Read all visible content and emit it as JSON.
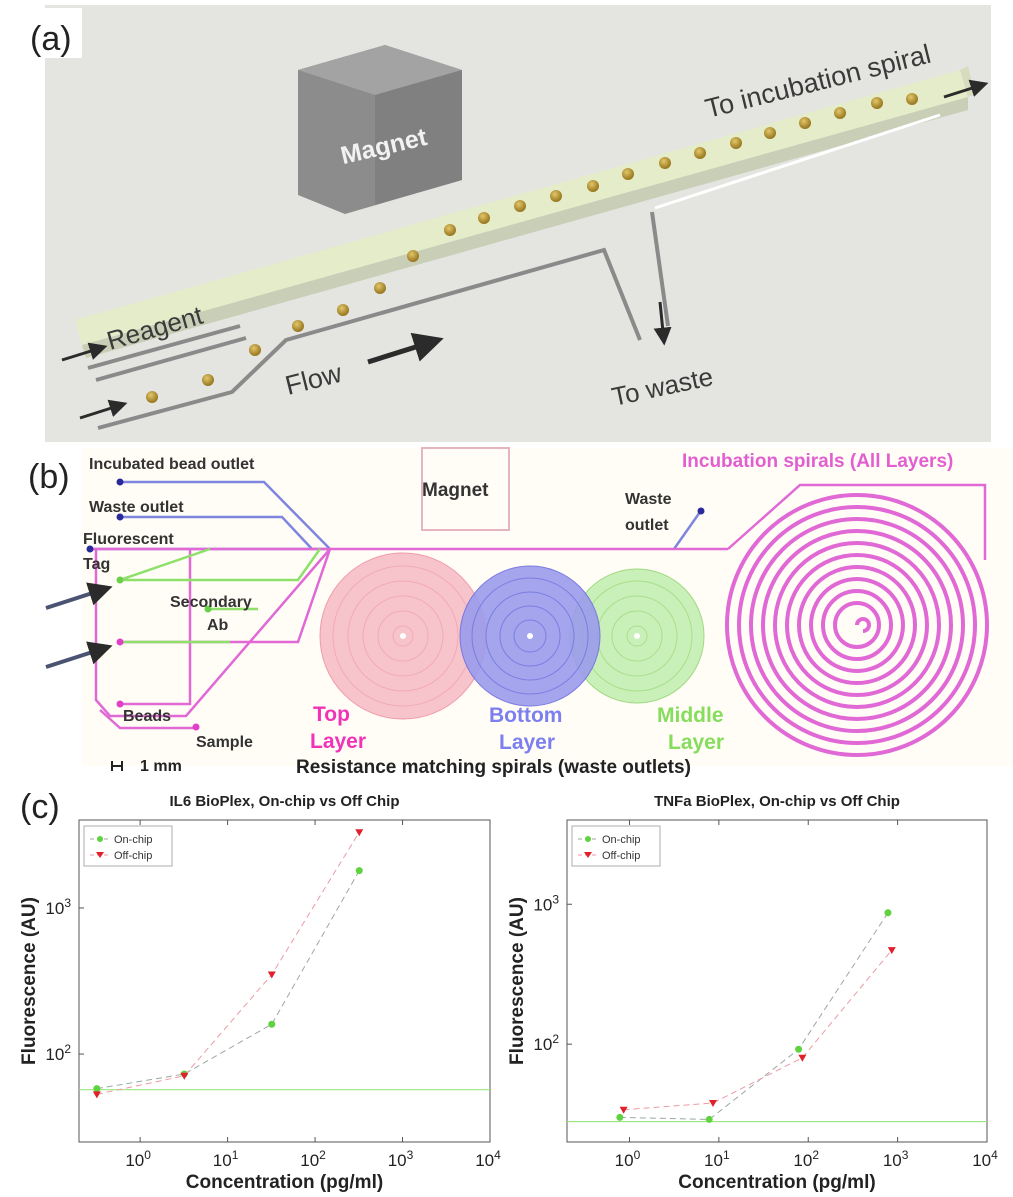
{
  "panel_a": {
    "label": "(a)",
    "magnet": "Magnet",
    "reagent": "Reagent",
    "flow": "Flow",
    "to_incubation": "To incubation spiral",
    "to_waste": "To waste",
    "colors": {
      "background": "#e4e5e1",
      "channel": "#e5ecc9",
      "bead": "#a8892c"
    }
  },
  "panel_b": {
    "label": "(b)",
    "incubated_bead_outlet": "Incubated bead outlet",
    "waste_outlet_left": "Waste outlet",
    "fluorescent": "Fluorescent",
    "tag": "Tag",
    "secondary": "Secondary",
    "ab": "Ab",
    "beads": "Beads",
    "sample": "Sample",
    "scale": "1 mm",
    "magnet": "Magnet",
    "waste_outlet_right_1": "Waste",
    "waste_outlet_right_2": "outlet",
    "incubation_title": "Incubation spirals (All Layers)",
    "top_1": "Top",
    "top_2": "Layer",
    "bottom_1": "Bottom",
    "bottom_2": "Layer",
    "middle_1": "Middle",
    "middle_2": "Layer",
    "resistance": "Resistance matching spirals (waste outlets)",
    "colors": {
      "top": "#f05fc8",
      "bottom": "#8f8af0",
      "middle": "#8ee06a",
      "spiral": "#e069d6",
      "blue_line": "#7f86e0",
      "dot": "#2a2a9a"
    }
  },
  "panel_c": {
    "label": "(c)"
  },
  "chart_data": [
    {
      "type": "scatter",
      "title": "IL6 BioPlex, On-chip vs Off Chip",
      "xlabel": "Concentration (pg/ml)",
      "ylabel": "Fluorescence (AU)",
      "xscale": "log",
      "yscale": "log",
      "xlim": [
        0.2,
        10000
      ],
      "ylim": [
        25,
        4000
      ],
      "xticks": [
        "10^0",
        "10^1",
        "10^2",
        "10^3",
        "10^4"
      ],
      "yticks": [
        "10^2",
        "10^3"
      ],
      "legend_position": "top-left",
      "series": [
        {
          "name": "On-chip",
          "marker": "circle",
          "color": "#5fd33f",
          "x": [
            0.32,
            3.2,
            32,
            320
          ],
          "y": [
            58,
            73,
            160,
            1800
          ]
        },
        {
          "name": "Off-chip",
          "marker": "triangle-down",
          "color": "#e0202a",
          "x": [
            0.32,
            3.2,
            32,
            320
          ],
          "y": [
            53,
            71,
            350,
            3300
          ]
        }
      ],
      "reference_line_y": 57
    },
    {
      "type": "scatter",
      "title": "TNFa BioPlex, On-chip vs Off Chip",
      "xlabel": "Concentration (pg/ml)",
      "ylabel": "Fluorescence (AU)",
      "xscale": "log",
      "yscale": "log",
      "xlim": [
        0.2,
        10000
      ],
      "ylim": [
        20,
        4000
      ],
      "xticks": [
        "10^0",
        "10^1",
        "10^2",
        "10^3",
        "10^4"
      ],
      "yticks": [
        "10^2",
        "10^3"
      ],
      "legend_position": "top-left",
      "series": [
        {
          "name": "On-chip",
          "marker": "circle",
          "color": "#5fd33f",
          "x": [
            0.78,
            7.8,
            78,
            780
          ],
          "y": [
            30,
            29,
            92,
            870
          ]
        },
        {
          "name": "Off-chip",
          "marker": "triangle-down",
          "color": "#e0202a",
          "x": [
            0.86,
            8.6,
            86,
            860
          ],
          "y": [
            34,
            38,
            80,
            470
          ]
        }
      ],
      "reference_line_y": 28
    }
  ]
}
